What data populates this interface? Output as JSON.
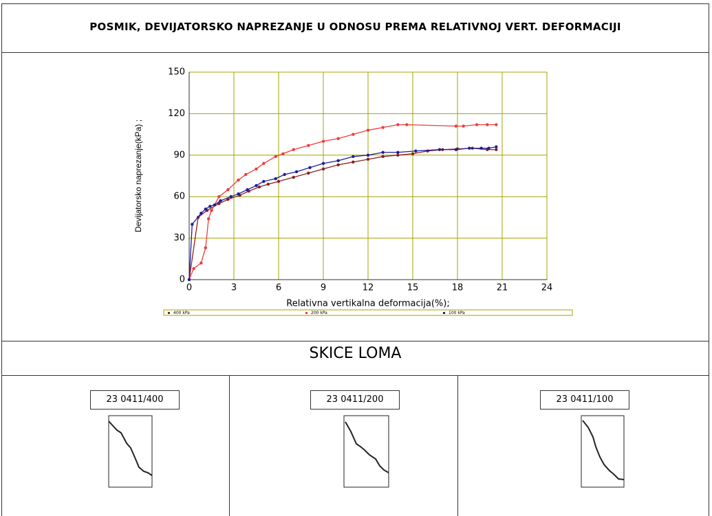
{
  "header": {
    "title": "POSMIK, DEVIJATORSKO NAPREZANJE U ODNOSU PREMA RELATIVNOJ VERT. DEFORMACIJI"
  },
  "chart_data": {
    "type": "line",
    "xlabel": "Relativna vertikalna deformacija(%);",
    "ylabel": "Devijatorsko naprezanje(kPa) ;",
    "xlim": [
      0,
      24
    ],
    "xticks": [
      0,
      3,
      6,
      9,
      12,
      15,
      18,
      21,
      24
    ],
    "ylim": [
      0,
      150
    ],
    "yticks": [
      0,
      30,
      60,
      90,
      120,
      150
    ],
    "grid": true,
    "grid_color": "#a3a300",
    "legend": "bottom",
    "series": [
      {
        "name": "400 kPa",
        "color": "#8b1e1e",
        "x": [
          0,
          0.6,
          1.2,
          2,
          2.6,
          3.4,
          4,
          4.7,
          5.3,
          6,
          7,
          8,
          9,
          10,
          11,
          12,
          13,
          14,
          15,
          16,
          17,
          18,
          19,
          20,
          20.6
        ],
        "values": [
          0,
          45,
          50,
          55,
          58,
          61,
          64,
          67,
          69,
          71,
          74,
          77,
          80,
          83,
          85,
          87,
          89,
          90,
          91,
          93,
          94,
          94.5,
          95,
          94,
          94
        ]
      },
      {
        "name": "200 kPa",
        "color": "#f03a3a",
        "x": [
          0,
          0.3,
          0.8,
          1.1,
          1.3,
          1.5,
          2,
          2.6,
          3.3,
          3.8,
          4.5,
          5,
          5.8,
          6.3,
          7,
          8,
          9,
          10,
          11,
          12,
          13,
          14,
          14.6,
          17.9,
          18.4,
          19.3,
          20,
          20.6
        ],
        "values": [
          0,
          8,
          12,
          23,
          44,
          50,
          60,
          65,
          72,
          76,
          80,
          84,
          89,
          91,
          94,
          97,
          100,
          102,
          105,
          108,
          110,
          112,
          112,
          111,
          111,
          112,
          112,
          112
        ]
      },
      {
        "name": "100 kPa",
        "color": "#1c1c9c",
        "x": [
          0,
          0.2,
          0.8,
          1.1,
          1.4,
          1.7,
          2.1,
          2.8,
          3.3,
          3.9,
          4.5,
          5,
          5.8,
          6.4,
          7.2,
          8.1,
          9,
          10,
          11,
          12,
          13,
          14,
          15.2,
          16.8,
          17.9,
          18.8,
          19.6,
          20.1,
          20.6
        ],
        "values": [
          0,
          40,
          48,
          51,
          53,
          54,
          57,
          60,
          62,
          65,
          68,
          71,
          73,
          76,
          78,
          81,
          84,
          86,
          89,
          90,
          92,
          92,
          93,
          94,
          94,
          95,
          95,
          95,
          96
        ]
      }
    ]
  },
  "section_title": "SKICE LOMA",
  "sketches": [
    {
      "label": "23 0411/400"
    },
    {
      "label": "23 0411/200"
    },
    {
      "label": "23 0411/100"
    }
  ]
}
